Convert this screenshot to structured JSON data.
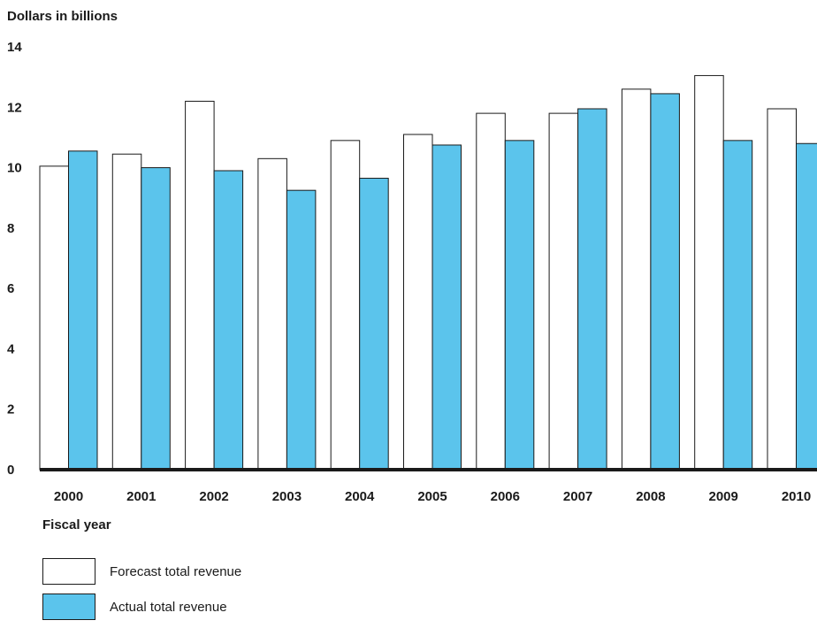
{
  "chart_data": {
    "type": "bar",
    "ylabel": "Dollars in billions",
    "xlabel": "Fiscal year",
    "ylim": [
      0,
      14
    ],
    "yticks": [
      0,
      2,
      4,
      6,
      8,
      10,
      12,
      14
    ],
    "categories": [
      "2000",
      "2001",
      "2002",
      "2003",
      "2004",
      "2005",
      "2006",
      "2007",
      "2008",
      "2009",
      "2010"
    ],
    "series": [
      {
        "name": "Forecast total revenue",
        "color": "#ffffff",
        "values": [
          10.05,
          10.45,
          12.2,
          10.3,
          10.9,
          11.1,
          11.8,
          11.8,
          12.6,
          13.05,
          11.95
        ]
      },
      {
        "name": "Actual total revenue",
        "color": "#5bc4ec",
        "values": [
          10.55,
          10.0,
          9.9,
          9.25,
          9.65,
          10.75,
          10.9,
          11.95,
          12.45,
          10.9,
          10.8
        ]
      }
    ],
    "grid": false,
    "legend_position": "bottom-left"
  }
}
